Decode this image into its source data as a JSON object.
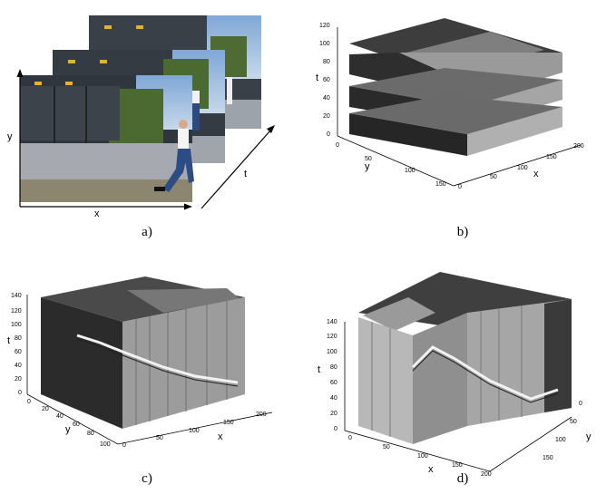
{
  "panels": {
    "a": {
      "caption": "a)",
      "axis_x": "x",
      "axis_y": "y",
      "axis_t": "t"
    },
    "b": {
      "caption": "b)",
      "axis_t": "t",
      "axis_y": "y",
      "axis_x": "x",
      "t_ticks": [
        "0",
        "20",
        "40",
        "60",
        "80",
        "100",
        "120"
      ],
      "y_ticks": [
        "0",
        "50",
        "100",
        "150"
      ],
      "x_ticks": [
        "0",
        "50",
        "100",
        "150",
        "200"
      ]
    },
    "c": {
      "caption": "c)",
      "axis_t": "t",
      "axis_y": "y",
      "axis_x": "x",
      "t_ticks": [
        "0",
        "20",
        "40",
        "60",
        "80",
        "100",
        "120",
        "140"
      ],
      "y_ticks": [
        "0",
        "20",
        "40",
        "60",
        "80",
        "100"
      ],
      "x_ticks": [
        "0",
        "50",
        "100",
        "150",
        "200"
      ]
    },
    "d": {
      "caption": "d)",
      "axis_t": "t",
      "axis_x": "x",
      "axis_y": "y",
      "t_ticks": [
        "0",
        "20",
        "40",
        "60",
        "80",
        "100",
        "120",
        "140"
      ],
      "x_ticks": [
        "0",
        "50",
        "100",
        "150",
        "200"
      ],
      "y_ticks": [
        "0",
        "50",
        "100",
        "150"
      ]
    }
  }
}
